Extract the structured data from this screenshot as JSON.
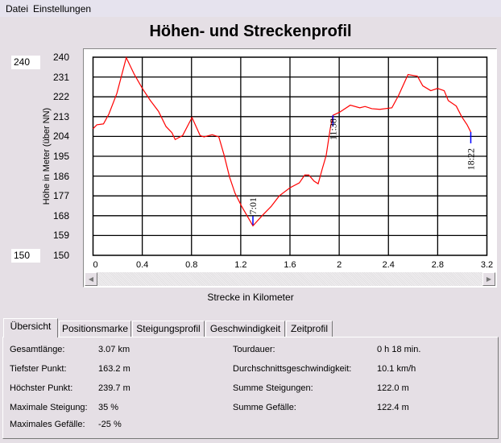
{
  "menu": {
    "items": [
      "Datei",
      "Einstellungen"
    ]
  },
  "title": "Höhen- und Streckenprofil",
  "y_max_input": "240",
  "y_min_input": "150",
  "chart_data": {
    "type": "line",
    "title": "Höhen- und Streckenprofil",
    "xlabel": "Strecke in Kilometer",
    "ylabel": "Höhe in Meter (über NN)",
    "xlim": [
      0,
      3.2
    ],
    "ylim": [
      150,
      240
    ],
    "x_ticks": [
      "0",
      "0.4",
      "0.8",
      "1.2",
      "1.6",
      "2",
      "2.4",
      "2.8",
      "3.2"
    ],
    "y_ticks": [
      "240",
      "231",
      "222",
      "213",
      "204",
      "195",
      "186",
      "177",
      "168",
      "159",
      "150"
    ],
    "grid": true,
    "line_color": "#ff0000",
    "marker_color": "#0000ff",
    "x": [
      0,
      0.031,
      0.085,
      0.129,
      0.194,
      0.27,
      0.336,
      0.401,
      0.466,
      0.532,
      0.593,
      0.641,
      0.667,
      0.728,
      0.804,
      0.87,
      0.902,
      0.968,
      1.022,
      1.066,
      1.109,
      1.153,
      1.208,
      1.299,
      1.382,
      1.447,
      1.513,
      1.6,
      1.676,
      1.72,
      1.753,
      1.796,
      1.829,
      1.862,
      1.894,
      1.927,
      1.949,
      2.003,
      2.09,
      2.167,
      2.21,
      2.265,
      2.33,
      2.428,
      2.483,
      2.559,
      2.635,
      2.679,
      2.744,
      2.799,
      2.853,
      2.886,
      2.951,
      2.995,
      3.039,
      3.069
    ],
    "y": [
      207.5,
      209.3,
      209.7,
      214.2,
      223.6,
      239.8,
      232.1,
      225.8,
      220.3,
      215.4,
      208.5,
      205.7,
      202.6,
      204.4,
      212.6,
      204.4,
      203.8,
      204.8,
      203.8,
      195.3,
      185.6,
      178.3,
      172.2,
      163.4,
      168.5,
      172.2,
      177.0,
      180.7,
      182.9,
      186.5,
      186.5,
      183.7,
      182.5,
      189.2,
      195.3,
      207.5,
      213.6,
      215.0,
      218.2,
      217.0,
      217.6,
      216.6,
      216.3,
      217.0,
      222.7,
      232.1,
      231.4,
      227.0,
      224.8,
      225.8,
      224.8,
      220.3,
      217.8,
      213.0,
      209.3,
      206.0
    ],
    "annotations": [
      {
        "x": 1.299,
        "y": 163.4,
        "label": "7:01",
        "side": "above"
      },
      {
        "x": 1.949,
        "y": 213.6,
        "label": "11:38",
        "side": "below"
      },
      {
        "x": 3.069,
        "y": 206.0,
        "label": "18:22",
        "side": "below"
      }
    ]
  },
  "tabs": [
    "Übersicht",
    "Positionsmarke",
    "Steigungsprofil",
    "Geschwindigkeit",
    "Zeitprofil"
  ],
  "active_tab": "Übersicht",
  "stats": {
    "left": [
      {
        "label": "Gesamtlänge:",
        "value": "3.07 km"
      },
      {
        "label": "Tiefster Punkt:",
        "value": "163.2 m"
      },
      {
        "label": "Höchster Punkt:",
        "value": "239.7 m"
      },
      {
        "label": "Maximale Steigung:",
        "value": "35 %"
      },
      {
        "label": "Maximales Gefälle:",
        "value": "-25 %"
      }
    ],
    "right": [
      {
        "label": "Tourdauer:",
        "value": "0 h 18 min."
      },
      {
        "label": "Durchschnittsgeschwindigkeit:",
        "value": "10.1 km/h"
      },
      {
        "label": "Summe Steigungen:",
        "value": "122.0 m"
      },
      {
        "label": "Summe Gefälle:",
        "value": "122.4 m"
      }
    ]
  }
}
